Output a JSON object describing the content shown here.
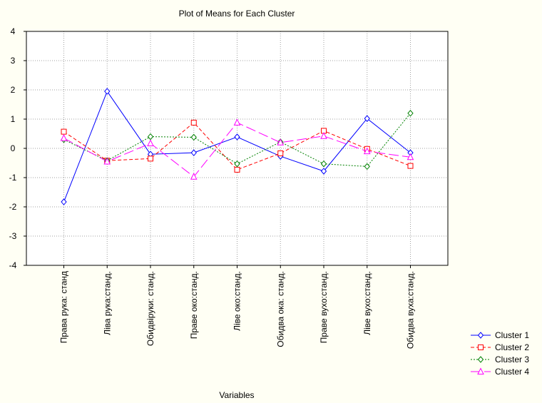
{
  "chart_data": {
    "type": "line",
    "title": "Plot of Means for Each Cluster",
    "x_label": "Variables",
    "categories": [
      "Права рука: станд",
      "Ліва рука:станд.",
      "Обидвіруки: станд.",
      "Праве око:станд.",
      "Ліве око:станд.",
      "Обидва ока: станд.",
      "Праве вухо:станд.",
      "Ліве вухо:станд.",
      "Обидва вуха:станд."
    ],
    "series": [
      {
        "name": "Cluster 1",
        "color": "#0000ff",
        "marker": "diamond",
        "dash": "solid",
        "values": [
          -1.83,
          1.95,
          -0.2,
          -0.15,
          0.39,
          -0.27,
          -0.78,
          1.02,
          -0.15
        ]
      },
      {
        "name": "Cluster 2",
        "color": "#ff0000",
        "marker": "square",
        "dash": "dashed",
        "values": [
          0.57,
          -0.42,
          -0.35,
          0.88,
          -0.73,
          -0.17,
          0.6,
          -0.02,
          -0.6
        ]
      },
      {
        "name": "Cluster 3",
        "color": "#008000",
        "marker": "diamond",
        "dash": "dotted",
        "values": [
          0.3,
          -0.42,
          0.4,
          0.38,
          -0.53,
          0.22,
          -0.53,
          -0.62,
          1.2
        ]
      },
      {
        "name": "Cluster 4",
        "color": "#ff00ff",
        "marker": "triangle",
        "dash": "longdash",
        "values": [
          0.35,
          -0.45,
          0.17,
          -0.97,
          0.88,
          0.2,
          0.42,
          -0.1,
          -0.3
        ]
      }
    ],
    "ylim": [
      -4,
      4
    ],
    "yticks": [
      -4,
      -3,
      -2,
      -1,
      0,
      1,
      2,
      3,
      4
    ],
    "grid": true,
    "legend": "bottom-right"
  }
}
